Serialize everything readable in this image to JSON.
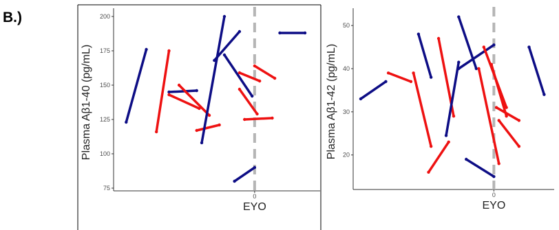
{
  "panel_label": "B.)",
  "colors": {
    "blue": "#0d0d85",
    "red": "#ee1111",
    "dash": "#b5b5b5",
    "axis": "#333333"
  },
  "chart_data": [
    {
      "type": "line",
      "ylabel": "Plasma Aβ1-40 (pg/mL)",
      "xlabel": "EYO",
      "x_ticks": [
        "0"
      ],
      "y_ticks": [
        75,
        100,
        125,
        150,
        175,
        200
      ],
      "ylim": [
        73,
        206
      ],
      "xlim": [
        -28,
        13
      ],
      "vline_x": 0,
      "segments": [
        {
          "color": "blue",
          "x": [
            -25.5,
            -21.5
          ],
          "y": [
            123,
            176
          ]
        },
        {
          "color": "red",
          "x": [
            -19.5,
            -17
          ],
          "y": [
            116,
            175
          ]
        },
        {
          "color": "blue",
          "x": [
            -17,
            -11.5
          ],
          "y": [
            145,
            146
          ]
        },
        {
          "color": "red",
          "x": [
            -15,
            -9
          ],
          "y": [
            150,
            128
          ]
        },
        {
          "color": "red",
          "x": [
            -17,
            -11
          ],
          "y": [
            143,
            133
          ]
        },
        {
          "color": "red",
          "x": [
            -11.5,
            -7
          ],
          "y": [
            117,
            121
          ]
        },
        {
          "color": "blue",
          "x": [
            -10.5,
            -6
          ],
          "y": [
            108,
            200
          ]
        },
        {
          "color": "blue",
          "x": [
            -8,
            -3
          ],
          "y": [
            168,
            189
          ]
        },
        {
          "color": "blue",
          "x": [
            -6,
            -0.5
          ],
          "y": [
            172,
            142
          ]
        },
        {
          "color": "blue",
          "x": [
            -4,
            0
          ],
          "y": [
            80,
            90
          ]
        },
        {
          "color": "red",
          "x": [
            -3,
            1
          ],
          "y": [
            159,
            153
          ]
        },
        {
          "color": "red",
          "x": [
            -3,
            0.5
          ],
          "y": [
            147,
            129
          ]
        },
        {
          "color": "red",
          "x": [
            -2,
            3.5
          ],
          "y": [
            125,
            126
          ]
        },
        {
          "color": "red",
          "x": [
            0,
            4
          ],
          "y": [
            164,
            155
          ]
        },
        {
          "color": "blue",
          "x": [
            5,
            10
          ],
          "y": [
            188,
            188
          ]
        }
      ]
    },
    {
      "type": "line",
      "ylabel": "Plasma Aβ1-42 (pg/mL)",
      "xlabel": "EYO",
      "x_ticks": [
        "0"
      ],
      "y_ticks": [
        20,
        30,
        40,
        50
      ],
      "ylim": [
        12,
        54
      ],
      "xlim": [
        -28,
        12
      ],
      "vline_x": 0,
      "segments": [
        {
          "color": "blue",
          "x": [
            -26.5,
            -21.5
          ],
          "y": [
            33,
            37
          ]
        },
        {
          "color": "red",
          "x": [
            -21,
            -16.5
          ],
          "y": [
            39,
            37
          ]
        },
        {
          "color": "blue",
          "x": [
            -15,
            -12.5
          ],
          "y": [
            48,
            38
          ]
        },
        {
          "color": "red",
          "x": [
            -16,
            -12.5
          ],
          "y": [
            39,
            22
          ]
        },
        {
          "color": "red",
          "x": [
            -13,
            -9
          ],
          "y": [
            16,
            23
          ]
        },
        {
          "color": "red",
          "x": [
            -11,
            -8
          ],
          "y": [
            47,
            29
          ]
        },
        {
          "color": "blue",
          "x": [
            -9.5,
            -7
          ],
          "y": [
            24.5,
            41.5
          ]
        },
        {
          "color": "blue",
          "x": [
            -7,
            -3.5
          ],
          "y": [
            52,
            40
          ]
        },
        {
          "color": "blue",
          "x": [
            -7,
            0
          ],
          "y": [
            40,
            45.5
          ]
        },
        {
          "color": "blue",
          "x": [
            -5.5,
            0
          ],
          "y": [
            19,
            15
          ]
        },
        {
          "color": "red",
          "x": [
            -3,
            1
          ],
          "y": [
            40,
            18
          ]
        },
        {
          "color": "red",
          "x": [
            -2,
            2.5
          ],
          "y": [
            45,
            31
          ]
        },
        {
          "color": "red",
          "x": [
            -0.5,
            2.5
          ],
          "y": [
            41,
            29
          ]
        },
        {
          "color": "red",
          "x": [
            0.5,
            5
          ],
          "y": [
            31,
            28
          ]
        },
        {
          "color": "red",
          "x": [
            1,
            5
          ],
          "y": [
            28,
            22
          ]
        },
        {
          "color": "blue",
          "x": [
            7,
            10
          ],
          "y": [
            45,
            34
          ]
        }
      ]
    }
  ]
}
